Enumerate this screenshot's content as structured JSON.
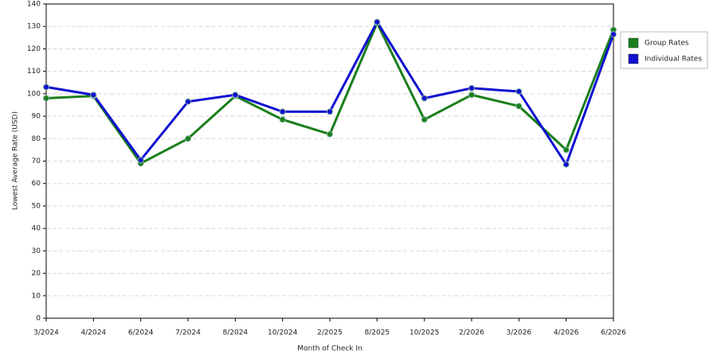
{
  "chart_data": {
    "type": "line",
    "x_label": "Month of Check In",
    "y_label": "Lowest Average Rate (USD)",
    "categories": [
      "3/2024",
      "4/2024",
      "6/2024",
      "7/2024",
      "8/2024",
      "10/2024",
      "2/2025",
      "8/2025",
      "10/2025",
      "2/2026",
      "3/2026",
      "4/2026",
      "6/2026"
    ],
    "series": [
      {
        "name": "Group Rates",
        "color": "#1a7f1a",
        "values": [
          98,
          99,
          69,
          80,
          99,
          88.5,
          82,
          131.5,
          88.5,
          99.5,
          94.5,
          75,
          128.5
        ]
      },
      {
        "name": "Individual Rates",
        "color": "#1010d0",
        "values": [
          103,
          99.5,
          70.5,
          96.5,
          99.5,
          92,
          92,
          132,
          98,
          102.5,
          101,
          68.5,
          126.5
        ]
      }
    ],
    "ylim": [
      0,
      140
    ],
    "yticks": [
      0,
      10,
      20,
      30,
      40,
      50,
      60,
      70,
      80,
      90,
      100,
      110,
      120,
      130,
      140
    ],
    "grid": true,
    "legend": "right"
  }
}
